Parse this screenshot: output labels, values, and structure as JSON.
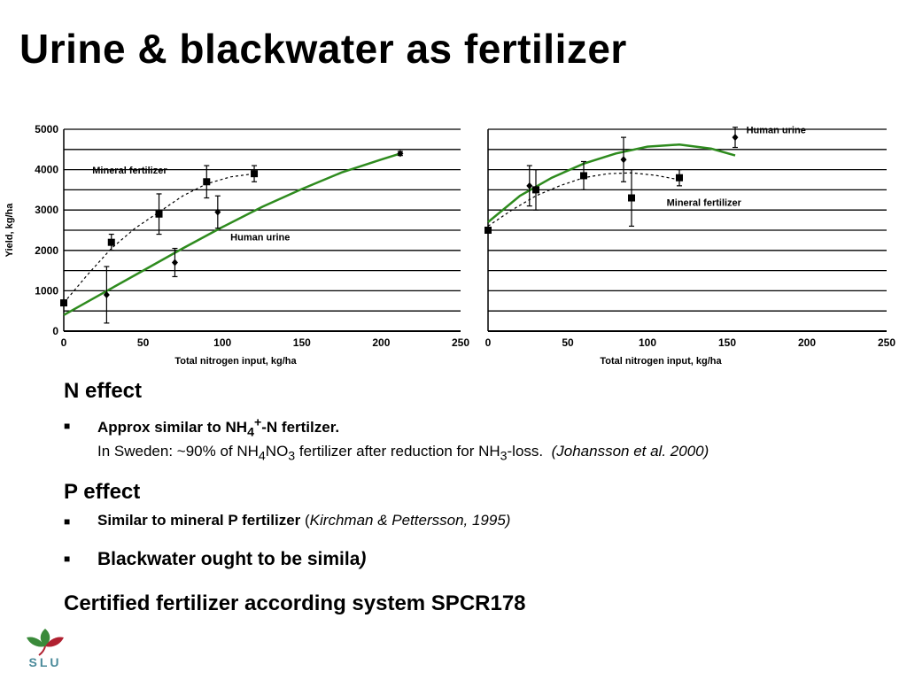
{
  "title": "Urine & blackwater as fertilizer",
  "n_effect": {
    "heading": "N effect",
    "bullet_strong_pre": "Approx similar to NH",
    "bullet_strong_sub": "4",
    "bullet_strong_sup": "+",
    "bullet_strong_post": "-N fertilzer.",
    "line2_a": "In Sweden: ~90% of NH",
    "line2_sub1": "4",
    "line2_b": "NO",
    "line2_sub2": "3",
    "line2_c": " fertilizer after reduction for NH",
    "line2_sub3": "3",
    "line2_d": "-loss.",
    "line2_cite": "(Johansson et al. 2000)"
  },
  "p_effect": {
    "heading": "P effect",
    "bullet1_strong": "Similar to mineral P fertilizer",
    "bullet1_open": " (",
    "bullet1_cite": "Kirchman & Pettersson, 1995)",
    "bullet2_strong": "Blackwater ought to be simila",
    "bullet2_tail": ")"
  },
  "certified": "Certified fertilizer according system SPCR178",
  "logo": {
    "text": "SLU",
    "colors": {
      "green": "#3a8a3a",
      "red": "#b02030",
      "blue": "#4a8a9a"
    }
  },
  "colors": {
    "curve_urine": "#2e8b1e",
    "axis": "#000000"
  },
  "chart_data": [
    {
      "type": "scatter",
      "xlabel": "Total nitrogen input, kg/ha",
      "ylabel": "Yield, kg/ha",
      "xlim": [
        0,
        250
      ],
      "ylim": [
        0,
        5000
      ],
      "xticks": [
        0,
        50,
        100,
        150,
        200,
        250
      ],
      "yticks": [
        0,
        1000,
        2000,
        3000,
        4000,
        5000
      ],
      "grid": "horizontal",
      "series": [
        {
          "name": "Mineral fertilizer",
          "marker": "square",
          "x": [
            0,
            30,
            60,
            90,
            120
          ],
          "y": [
            700,
            2200,
            2900,
            3700,
            3900
          ],
          "err": [
            0,
            200,
            500,
            400,
            200
          ],
          "fit": "dashed"
        },
        {
          "name": "Human urine",
          "marker": "diamond",
          "x": [
            27,
            70,
            97,
            212
          ],
          "y": [
            900,
            1700,
            2950,
            4400
          ],
          "err": [
            700,
            350,
            400,
            50
          ],
          "fit": "solid-green"
        }
      ],
      "fit_curves": {
        "Mineral fertilizer": [
          [
            0,
            700
          ],
          [
            15,
            1400
          ],
          [
            30,
            2050
          ],
          [
            45,
            2550
          ],
          [
            60,
            2950
          ],
          [
            75,
            3350
          ],
          [
            90,
            3650
          ],
          [
            105,
            3820
          ],
          [
            120,
            3900
          ]
        ],
        "Human urine": [
          [
            0,
            400
          ],
          [
            25,
            950
          ],
          [
            50,
            1500
          ],
          [
            75,
            2050
          ],
          [
            100,
            2580
          ],
          [
            125,
            3080
          ],
          [
            150,
            3520
          ],
          [
            175,
            3930
          ],
          [
            200,
            4250
          ],
          [
            212,
            4400
          ]
        ]
      }
    },
    {
      "type": "scatter",
      "xlabel": "Total nitrogen input, kg/ha",
      "ylabel": "",
      "xlim": [
        0,
        250
      ],
      "ylim": [
        0,
        5000
      ],
      "xticks": [
        0,
        50,
        100,
        150,
        200,
        250
      ],
      "yticks": [],
      "grid": "horizontal",
      "series": [
        {
          "name": "Human urine",
          "marker": "diamond",
          "x": [
            26,
            85,
            155
          ],
          "y": [
            3600,
            4250,
            4800
          ],
          "err": [
            500,
            550,
            250
          ],
          "fit": "solid-green"
        },
        {
          "name": "Mineral fertilizer",
          "marker": "square",
          "x": [
            0,
            30,
            60,
            90,
            120
          ],
          "y": [
            2500,
            3500,
            3850,
            3300,
            3800
          ],
          "err": [
            0,
            500,
            350,
            700,
            200
          ],
          "fit": "dashed"
        }
      ],
      "fit_curves": {
        "Human urine": [
          [
            0,
            2700
          ],
          [
            20,
            3350
          ],
          [
            40,
            3800
          ],
          [
            60,
            4150
          ],
          [
            80,
            4400
          ],
          [
            100,
            4570
          ],
          [
            120,
            4620
          ],
          [
            140,
            4520
          ],
          [
            155,
            4350
          ]
        ],
        "Mineral fertilizer": [
          [
            0,
            2600
          ],
          [
            15,
            3000
          ],
          [
            30,
            3350
          ],
          [
            45,
            3600
          ],
          [
            60,
            3800
          ],
          [
            75,
            3900
          ],
          [
            90,
            3920
          ],
          [
            105,
            3860
          ],
          [
            120,
            3750
          ]
        ]
      }
    }
  ]
}
